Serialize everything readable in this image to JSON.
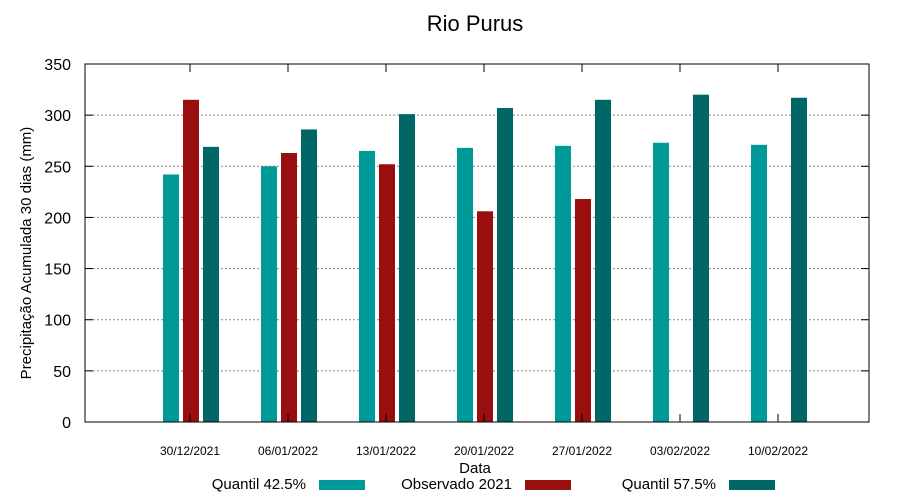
{
  "chart_data": {
    "type": "bar",
    "title": "Rio Purus",
    "xlabel": "Data",
    "ylabel": "Precipitação Acumulada 30 dias (mm)",
    "ylim": [
      0,
      350
    ],
    "yticks": [
      0,
      50,
      100,
      150,
      200,
      250,
      300,
      350
    ],
    "grid": true,
    "legend_position": "bottom",
    "categories": [
      "30/12/2021",
      "06/01/2022",
      "13/01/2022",
      "20/01/2022",
      "27/01/2022",
      "03/02/2022",
      "10/02/2022"
    ],
    "series": [
      {
        "name": "Quantil 42.5%",
        "color": "#009999",
        "values": [
          242,
          250,
          265,
          268,
          270,
          273,
          271
        ]
      },
      {
        "name": "Observado 2021",
        "color": "#990f0f",
        "values": [
          315,
          263,
          252,
          206,
          218,
          null,
          null
        ]
      },
      {
        "name": "Quantil 57.5%",
        "color": "#006666",
        "values": [
          269,
          286,
          301,
          307,
          315,
          320,
          317
        ]
      }
    ]
  }
}
